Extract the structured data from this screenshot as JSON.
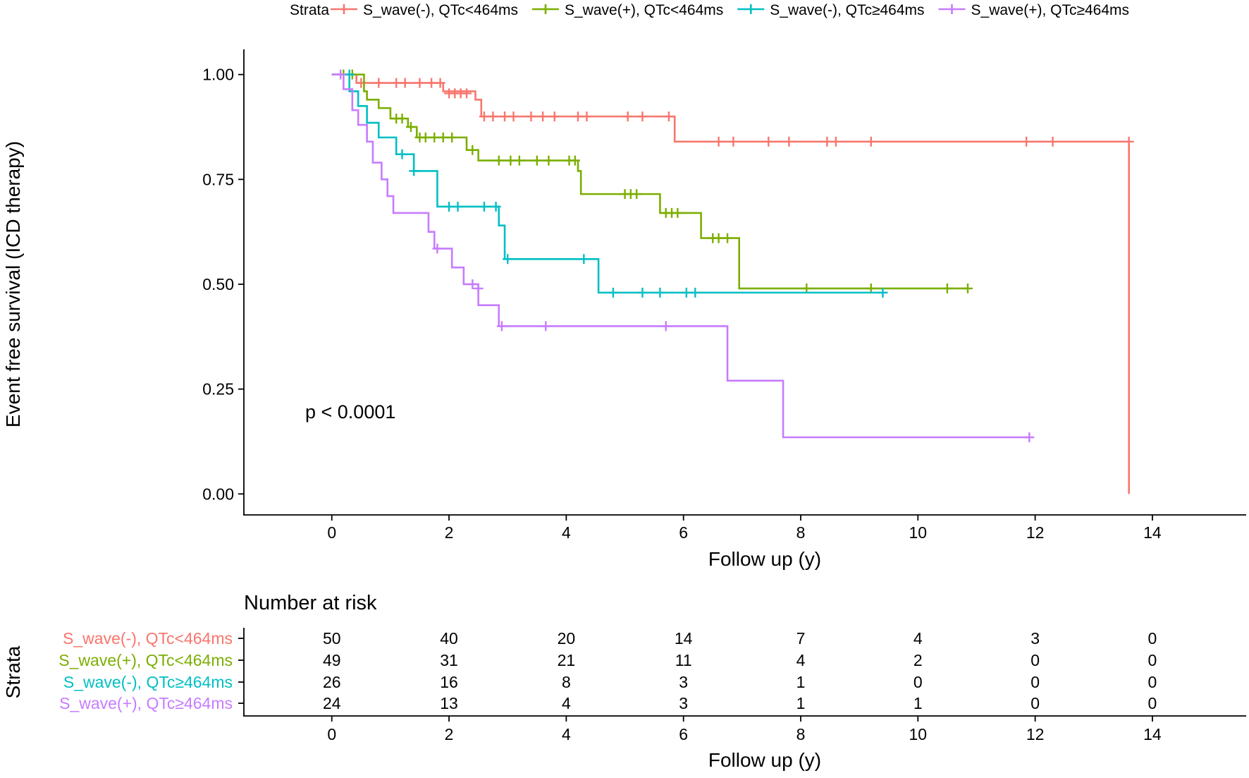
{
  "chart_data": {
    "type": "kaplan-meier",
    "xlabel": "Follow up (y)",
    "ylabel": "Event free survival (ICD therapy)",
    "xlim": [
      -1.5,
      15.6
    ],
    "ylim": [
      -0.05,
      1.06
    ],
    "x_ticks": [
      0,
      2,
      4,
      6,
      8,
      10,
      12,
      14
    ],
    "y_ticks": [
      0,
      0.25,
      0.5,
      0.75,
      1.0
    ],
    "y_tick_labels": [
      "0.00",
      "0.25",
      "0.50",
      "0.75",
      "1.00"
    ],
    "annotation": "p < 0.0001",
    "legend": {
      "title": "Strata",
      "position": "top"
    },
    "series": [
      {
        "name": "S_wave(-), QTc<464ms",
        "color": "#F8766D",
        "steps": [
          [
            0,
            1.0
          ],
          [
            0.42,
            0.98
          ],
          [
            1.9,
            0.96
          ],
          [
            2.45,
            0.94
          ],
          [
            2.55,
            0.9
          ],
          [
            5.85,
            0.84
          ],
          [
            13.6,
            0.0
          ]
        ],
        "censor": [
          [
            0.5,
            0.98
          ],
          [
            0.8,
            0.98
          ],
          [
            1.1,
            0.98
          ],
          [
            1.25,
            0.98
          ],
          [
            1.5,
            0.98
          ],
          [
            1.7,
            0.98
          ],
          [
            1.85,
            0.98
          ],
          [
            2.0,
            0.955
          ],
          [
            2.1,
            0.955
          ],
          [
            2.2,
            0.955
          ],
          [
            2.3,
            0.955
          ],
          [
            2.6,
            0.9
          ],
          [
            2.75,
            0.9
          ],
          [
            2.95,
            0.9
          ],
          [
            3.1,
            0.9
          ],
          [
            3.4,
            0.9
          ],
          [
            3.6,
            0.9
          ],
          [
            3.8,
            0.9
          ],
          [
            4.2,
            0.9
          ],
          [
            4.35,
            0.9
          ],
          [
            5.05,
            0.9
          ],
          [
            5.3,
            0.9
          ],
          [
            5.75,
            0.9
          ],
          [
            6.6,
            0.84
          ],
          [
            6.85,
            0.84
          ],
          [
            7.45,
            0.84
          ],
          [
            7.8,
            0.84
          ],
          [
            8.45,
            0.84
          ],
          [
            8.6,
            0.84
          ],
          [
            9.2,
            0.84
          ],
          [
            11.85,
            0.84
          ],
          [
            12.3,
            0.84
          ],
          [
            13.6,
            0.84
          ]
        ]
      },
      {
        "name": "S_wave(+), QTc<464ms",
        "color": "#7CAE00",
        "steps": [
          [
            0,
            1.0
          ],
          [
            0.55,
            0.96
          ],
          [
            0.6,
            0.94
          ],
          [
            0.8,
            0.92
          ],
          [
            1.0,
            0.895
          ],
          [
            1.3,
            0.875
          ],
          [
            1.45,
            0.85
          ],
          [
            2.3,
            0.82
          ],
          [
            2.5,
            0.795
          ],
          [
            4.2,
            0.77
          ],
          [
            4.25,
            0.715
          ],
          [
            5.6,
            0.67
          ],
          [
            6.3,
            0.61
          ],
          [
            6.95,
            0.49
          ],
          [
            10.85,
            0.49
          ]
        ],
        "censor": [
          [
            0.2,
            1.0
          ],
          [
            0.35,
            1.0
          ],
          [
            1.1,
            0.895
          ],
          [
            1.2,
            0.895
          ],
          [
            1.35,
            0.875
          ],
          [
            1.5,
            0.85
          ],
          [
            1.6,
            0.85
          ],
          [
            1.75,
            0.85
          ],
          [
            1.9,
            0.85
          ],
          [
            2.05,
            0.85
          ],
          [
            2.4,
            0.82
          ],
          [
            2.85,
            0.795
          ],
          [
            3.05,
            0.795
          ],
          [
            3.2,
            0.795
          ],
          [
            3.5,
            0.795
          ],
          [
            3.7,
            0.795
          ],
          [
            4.05,
            0.795
          ],
          [
            4.15,
            0.795
          ],
          [
            5.0,
            0.715
          ],
          [
            5.1,
            0.715
          ],
          [
            5.2,
            0.715
          ],
          [
            5.7,
            0.67
          ],
          [
            5.8,
            0.67
          ],
          [
            5.9,
            0.67
          ],
          [
            6.5,
            0.61
          ],
          [
            6.6,
            0.61
          ],
          [
            6.75,
            0.61
          ],
          [
            8.1,
            0.49
          ],
          [
            9.2,
            0.49
          ],
          [
            10.5,
            0.49
          ],
          [
            10.85,
            0.49
          ]
        ]
      },
      {
        "name": "S_wave(-), QTc≥464ms",
        "color": "#00BFC4",
        "steps": [
          [
            0,
            1.0
          ],
          [
            0.3,
            0.96
          ],
          [
            0.45,
            0.925
          ],
          [
            0.6,
            0.885
          ],
          [
            0.8,
            0.85
          ],
          [
            1.1,
            0.81
          ],
          [
            1.4,
            0.77
          ],
          [
            1.8,
            0.685
          ],
          [
            2.85,
            0.64
          ],
          [
            2.95,
            0.56
          ],
          [
            4.55,
            0.48
          ],
          [
            9.4,
            0.48
          ]
        ],
        "censor": [
          [
            0.3,
            1.0
          ],
          [
            1.2,
            0.81
          ],
          [
            1.4,
            0.77
          ],
          [
            2.0,
            0.685
          ],
          [
            2.15,
            0.685
          ],
          [
            2.6,
            0.685
          ],
          [
            2.8,
            0.685
          ],
          [
            3.0,
            0.56
          ],
          [
            4.3,
            0.56
          ],
          [
            4.8,
            0.48
          ],
          [
            5.3,
            0.48
          ],
          [
            5.6,
            0.48
          ],
          [
            6.05,
            0.48
          ],
          [
            6.2,
            0.48
          ],
          [
            9.4,
            0.48
          ]
        ]
      },
      {
        "name": "S_wave(+), QTc≥464ms",
        "color": "#C77CFF",
        "steps": [
          [
            0,
            1.0
          ],
          [
            0.2,
            0.965
          ],
          [
            0.35,
            0.915
          ],
          [
            0.45,
            0.88
          ],
          [
            0.6,
            0.84
          ],
          [
            0.7,
            0.79
          ],
          [
            0.85,
            0.75
          ],
          [
            0.95,
            0.71
          ],
          [
            1.05,
            0.67
          ],
          [
            1.65,
            0.625
          ],
          [
            1.75,
            0.585
          ],
          [
            2.05,
            0.54
          ],
          [
            2.25,
            0.5
          ],
          [
            2.5,
            0.45
          ],
          [
            2.85,
            0.4
          ],
          [
            6.75,
            0.27
          ],
          [
            7.7,
            0.135
          ],
          [
            11.9,
            0.135
          ]
        ],
        "censor": [
          [
            0.15,
            1.0
          ],
          [
            1.8,
            0.585
          ],
          [
            2.4,
            0.5
          ],
          [
            2.5,
            0.49
          ],
          [
            2.9,
            0.4
          ],
          [
            3.65,
            0.4
          ],
          [
            5.7,
            0.4
          ],
          [
            11.9,
            0.135
          ]
        ]
      }
    ],
    "risk_table": {
      "title": "Number at risk",
      "strata_axis_label": "Strata",
      "time_points": [
        0,
        2,
        4,
        6,
        8,
        10,
        12,
        14
      ],
      "rows": [
        {
          "label": "S_wave(-), QTc<464ms",
          "color": "#F8766D",
          "values": [
            50,
            40,
            20,
            14,
            7,
            4,
            3,
            0
          ]
        },
        {
          "label": "S_wave(+), QTc<464ms",
          "color": "#7CAE00",
          "values": [
            49,
            31,
            21,
            11,
            4,
            2,
            0,
            0
          ]
        },
        {
          "label": "S_wave(-), QTc≥464ms",
          "color": "#00BFC4",
          "values": [
            26,
            16,
            8,
            3,
            1,
            0,
            0,
            0
          ]
        },
        {
          "label": "S_wave(+), QTc≥464ms",
          "color": "#C77CFF",
          "values": [
            24,
            13,
            4,
            3,
            1,
            1,
            0,
            0
          ]
        }
      ],
      "xlabel": "Follow up (y)"
    }
  }
}
